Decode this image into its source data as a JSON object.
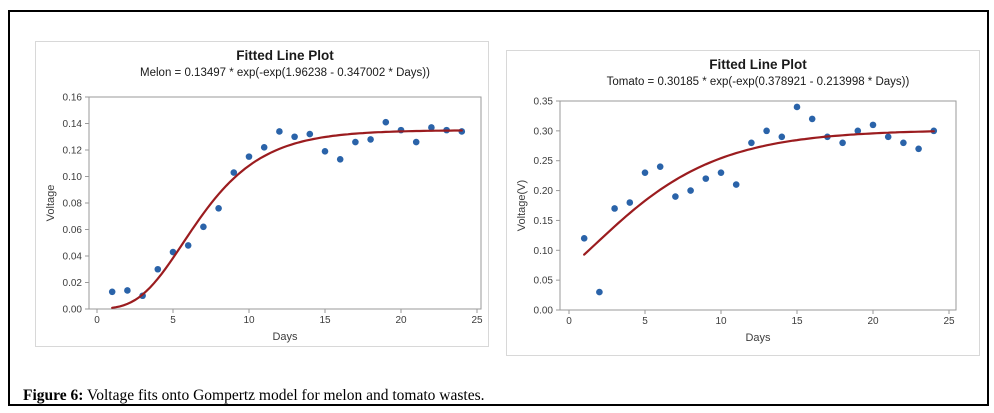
{
  "figure": {
    "caption_label": "Figure 6:",
    "caption_text": " Voltage fits onto Gompertz model for melon and tomato wastes."
  },
  "colors": {
    "point_blue": "#2A63A9",
    "fit_red": "#9B1C1F",
    "frame_gray": "#9a9a9a",
    "panel_border": "#d8d8d8"
  },
  "chart_data": [
    {
      "type": "scatter",
      "title": "Fitted Line Plot",
      "subtitle": "Melon = 0.13497 * exp(-exp(1.96238 - 0.347002 * Days))",
      "xlabel": "Days",
      "ylabel": "Voltage",
      "xlim": [
        0,
        25
      ],
      "ylim": [
        0,
        0.16
      ],
      "grid": false,
      "legend": "none",
      "xticks": {
        "values": [
          0,
          5,
          10,
          15,
          20,
          25
        ],
        "labels": [
          "0",
          "5",
          "10",
          "15",
          "20",
          "25"
        ]
      },
      "yticks": {
        "values": [
          0.0,
          0.02,
          0.04,
          0.06,
          0.08,
          0.1,
          0.12,
          0.14,
          0.16
        ],
        "labels": [
          "0.00",
          "0.02",
          "0.04",
          "0.06",
          "0.08",
          "0.10",
          "0.12",
          "0.14",
          "0.16"
        ]
      },
      "series": [
        {
          "name": "observed-voltage",
          "kind": "points",
          "x": [
            1,
            2,
            3,
            4,
            5,
            6,
            7,
            8,
            9,
            10,
            11,
            12,
            13,
            14,
            15,
            16,
            17,
            18,
            19,
            20,
            21,
            22,
            23,
            24
          ],
          "y": [
            0.013,
            0.014,
            0.01,
            0.03,
            0.043,
            0.048,
            0.062,
            0.076,
            0.103,
            0.115,
            0.122,
            0.134,
            0.13,
            0.132,
            0.119,
            0.113,
            0.126,
            0.128,
            0.141,
            0.135,
            0.126,
            0.137,
            0.135,
            0.134
          ]
        },
        {
          "name": "gompertz-fit",
          "kind": "curve",
          "model": "a*exp(-exp(b-c*Days))",
          "params": {
            "a": 0.13497,
            "b": 1.96238,
            "c": 0.347002
          },
          "x_range": [
            1,
            24
          ]
        }
      ]
    },
    {
      "type": "scatter",
      "title": "Fitted Line Plot",
      "subtitle": "Tomato = 0.30185 * exp(-exp(0.378921 - 0.213998 * Days))",
      "xlabel": "Days",
      "ylabel": "Voltage(V)",
      "xlim": [
        0,
        25
      ],
      "ylim": [
        0,
        0.35
      ],
      "grid": false,
      "legend": "none",
      "xticks": {
        "values": [
          0,
          5,
          10,
          15,
          20,
          25
        ],
        "labels": [
          "0",
          "5",
          "10",
          "15",
          "20",
          "25"
        ]
      },
      "yticks": {
        "values": [
          0.0,
          0.05,
          0.1,
          0.15,
          0.2,
          0.25,
          0.3,
          0.35
        ],
        "labels": [
          "0.00",
          "0.05",
          "0.10",
          "0.15",
          "0.20",
          "0.25",
          "0.30",
          "0.35"
        ]
      },
      "series": [
        {
          "name": "observed-voltage",
          "kind": "points",
          "x": [
            1,
            2,
            3,
            4,
            5,
            6,
            7,
            8,
            9,
            10,
            11,
            12,
            13,
            14,
            15,
            16,
            17,
            18,
            19,
            20,
            21,
            22,
            23,
            24
          ],
          "y": [
            0.12,
            0.03,
            0.17,
            0.18,
            0.23,
            0.24,
            0.19,
            0.2,
            0.22,
            0.23,
            0.21,
            0.28,
            0.3,
            0.29,
            0.34,
            0.32,
            0.29,
            0.28,
            0.3,
            0.31,
            0.29,
            0.28,
            0.27,
            0.3
          ]
        },
        {
          "name": "gompertz-fit",
          "kind": "curve",
          "model": "a*exp(-exp(b-c*Days))",
          "params": {
            "a": 0.30185,
            "b": 0.378921,
            "c": 0.213998
          },
          "x_range": [
            1,
            24
          ]
        }
      ]
    }
  ]
}
